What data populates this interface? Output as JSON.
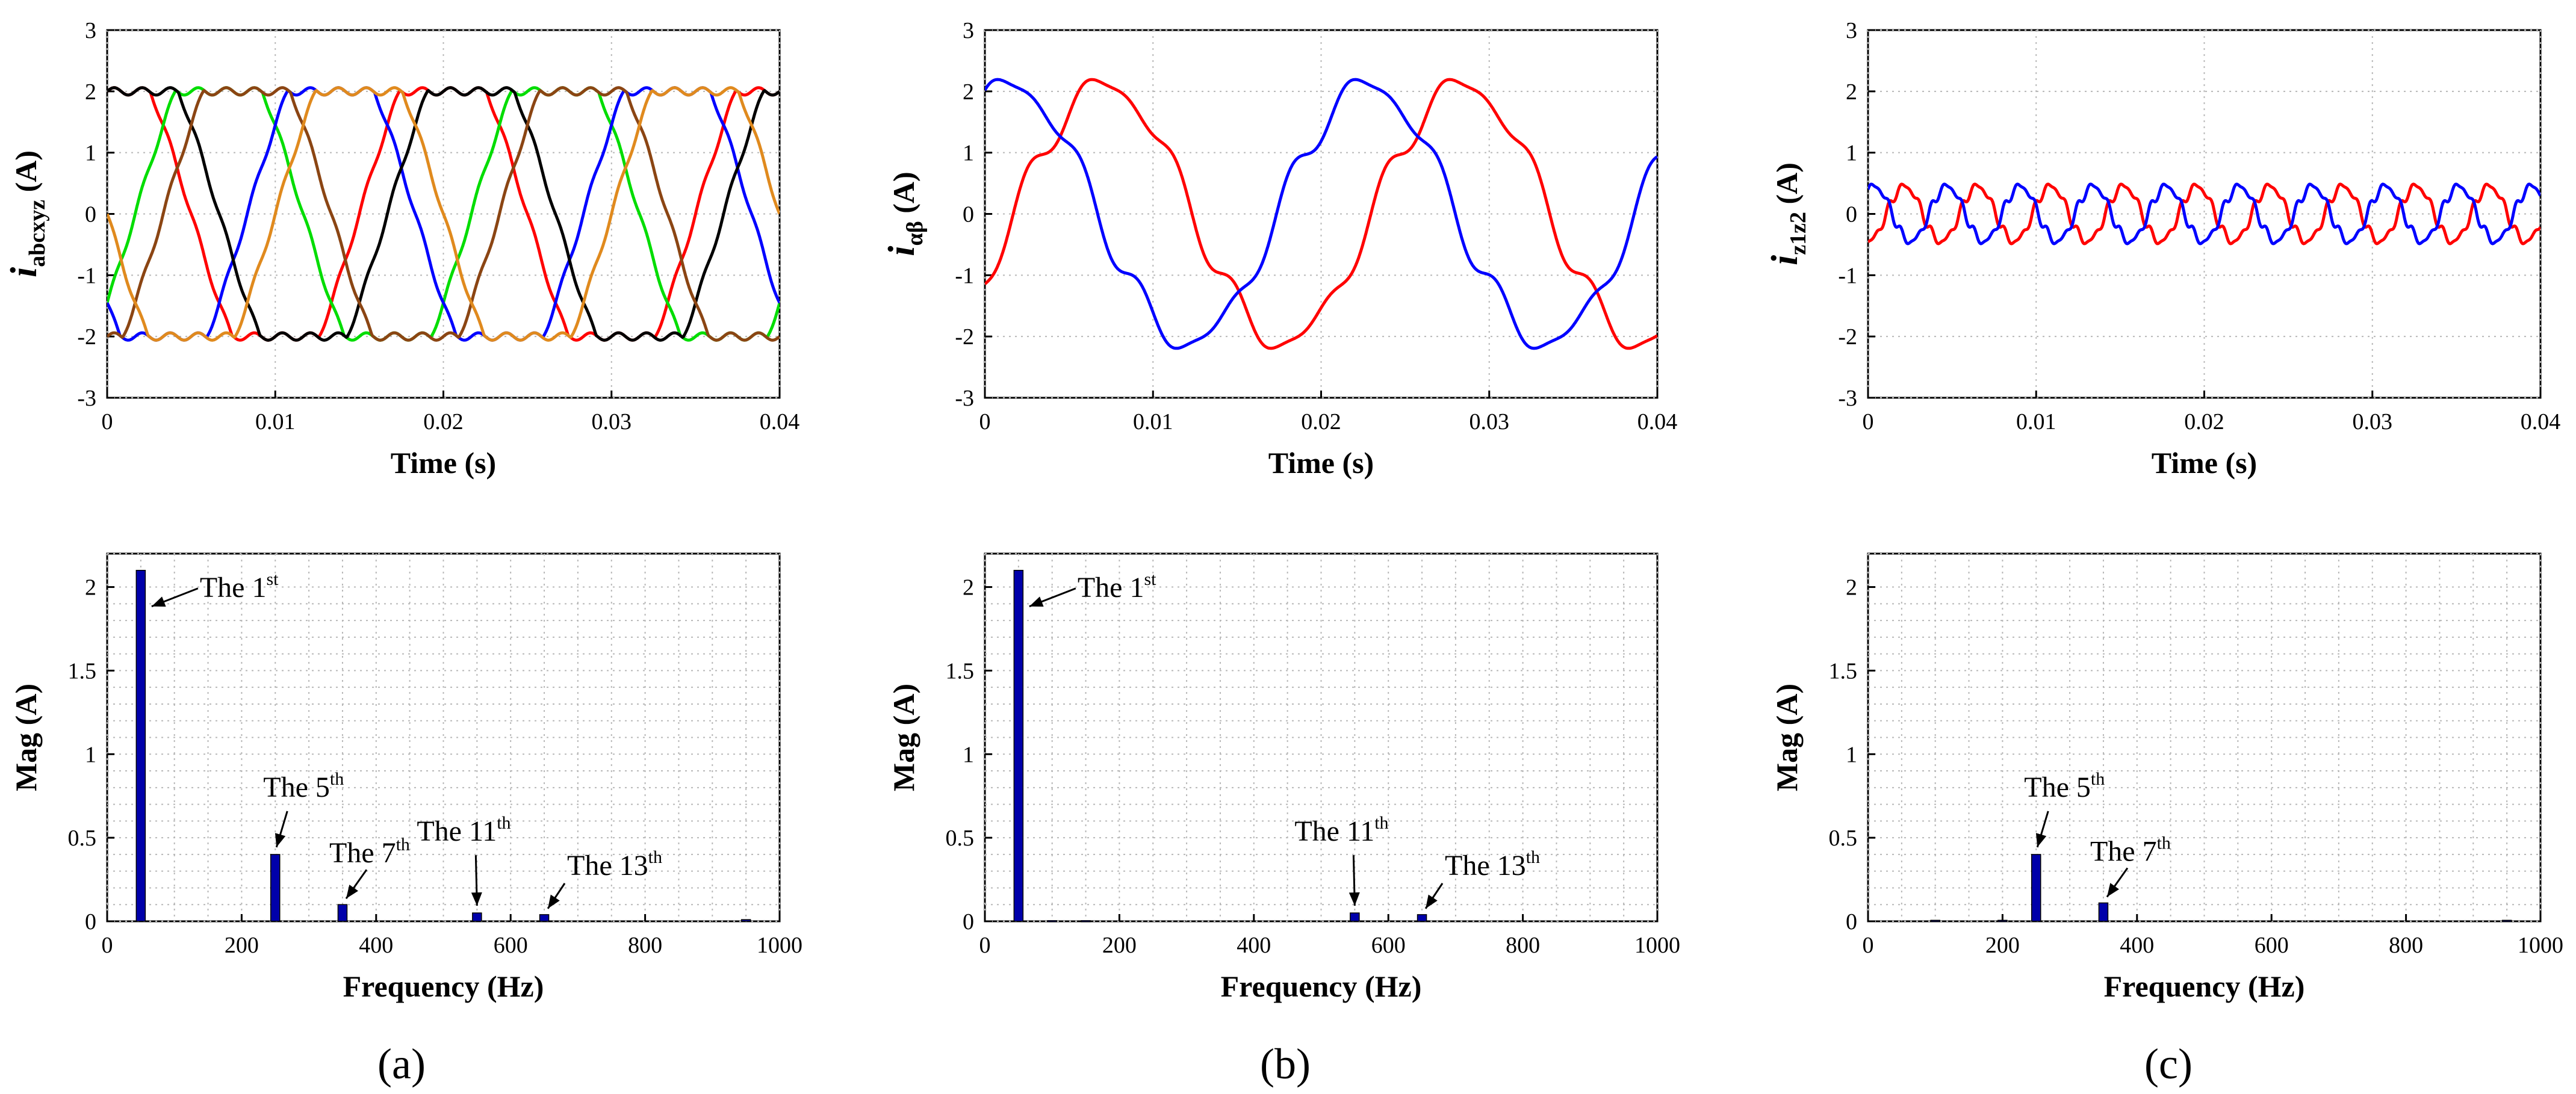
{
  "panel_labels": [
    "(a)",
    "(b)",
    "(c)"
  ],
  "colors": {
    "phase_a": "#ff0000",
    "phase_b": "#00dd00",
    "phase_c": "#0000ff",
    "phase_x": "#000000",
    "phase_y": "#8b4513",
    "phase_z": "#e08a1e",
    "alpha": "#ff0000",
    "beta": "#0000ff",
    "z1": "#ff0000",
    "z2": "#0000ff",
    "bar": "#0000aa"
  },
  "chart_data": [
    {
      "id": "a-top",
      "type": "line",
      "ylabel_main": "i",
      "ylabel_sub": "abcxyz",
      "ylabel_unit": "(A)",
      "xlabel": "Time (s)",
      "xlim": [
        0,
        0.04
      ],
      "ylim": [
        -3,
        3
      ],
      "xticks": [
        "0",
        "0.01",
        "0.02",
        "0.03",
        "0.04"
      ],
      "yticks": [
        "-3",
        "-2",
        "-1",
        "0",
        "1",
        "2",
        "3"
      ],
      "series": [
        {
          "name": "a",
          "shape": "trap",
          "amplitude": 2.0,
          "freq_hz": 50,
          "phase_deg": 90
        },
        {
          "name": "b",
          "shape": "trap",
          "amplitude": 2.0,
          "freq_hz": 50,
          "phase_deg": -30
        },
        {
          "name": "c",
          "shape": "trap",
          "amplitude": 2.0,
          "freq_hz": 50,
          "phase_deg": 210
        },
        {
          "name": "x",
          "shape": "trap",
          "amplitude": 2.0,
          "freq_hz": 50,
          "phase_deg": 60
        },
        {
          "name": "y",
          "shape": "trap",
          "amplitude": 2.0,
          "freq_hz": 50,
          "phase_deg": -60
        },
        {
          "name": "z",
          "shape": "trap",
          "amplitude": 2.0,
          "freq_hz": 50,
          "phase_deg": 180
        }
      ]
    },
    {
      "id": "b-top",
      "type": "line",
      "ylabel_main": "i",
      "ylabel_sub": "αβ",
      "ylabel_unit": "(A)",
      "xlabel": "Time (s)",
      "xlim": [
        0,
        0.04
      ],
      "ylim": [
        -3,
        3
      ],
      "xticks": [
        "0",
        "0.01",
        "0.02",
        "0.03",
        "0.04"
      ],
      "yticks": [
        "-3",
        "-2",
        "-1",
        "0",
        "1",
        "2",
        "3"
      ],
      "series": [
        {
          "name": "alpha",
          "shape": "sine",
          "amplitude": 2.1,
          "freq_hz": 47,
          "phase_deg": -30,
          "ripple": 0.08
        },
        {
          "name": "beta",
          "shape": "sine",
          "amplitude": 2.1,
          "freq_hz": 47,
          "phase_deg": 65,
          "ripple": 0.08
        }
      ]
    },
    {
      "id": "c-top",
      "type": "line",
      "ylabel_main": "i",
      "ylabel_sub": "z1z2",
      "ylabel_unit": "(A)",
      "xlabel": "Time (s)",
      "xlim": [
        0,
        0.04
      ],
      "ylim": [
        -3,
        3
      ],
      "xticks": [
        "0",
        "0.01",
        "0.02",
        "0.03",
        "0.04"
      ],
      "yticks": [
        "-3",
        "-2",
        "-1",
        "0",
        "1",
        "2",
        "3"
      ],
      "series": [
        {
          "name": "z1",
          "shape": "sine",
          "amplitude": 0.45,
          "freq_hz": 230,
          "phase_deg": -90,
          "ripple": 0.12
        },
        {
          "name": "z2",
          "shape": "sine",
          "amplitude": 0.45,
          "freq_hz": 230,
          "phase_deg": 60,
          "ripple": 0.12
        }
      ]
    },
    {
      "id": "a-bottom",
      "type": "bar",
      "ylabel": "Mag (A)",
      "xlabel": "Frequency (Hz)",
      "xlim": [
        0,
        1000
      ],
      "ylim": [
        0,
        2.2
      ],
      "xticks": [
        "0",
        "200",
        "400",
        "600",
        "800",
        "1000"
      ],
      "yticks": [
        "0",
        "0.5",
        "1",
        "1.5",
        "2"
      ],
      "x": [
        50,
        250,
        350,
        550,
        650,
        950
      ],
      "values": [
        2.1,
        0.4,
        0.1,
        0.05,
        0.04,
        0.01
      ],
      "annotations": [
        {
          "base": "The 1",
          "sup": "st",
          "x": 50,
          "y": 2.1
        },
        {
          "base": "The 5",
          "sup": "th",
          "x": 250,
          "y": 0.4
        },
        {
          "base": "The 7",
          "sup": "th",
          "x": 350,
          "y": 0.1
        },
        {
          "base": "The 11",
          "sup": "th",
          "x": 550,
          "y": 0.05
        },
        {
          "base": "The 13",
          "sup": "th",
          "x": 650,
          "y": 0.04
        }
      ]
    },
    {
      "id": "b-bottom",
      "type": "bar",
      "ylabel": "Mag (A)",
      "xlabel": "Frequency (Hz)",
      "xlim": [
        0,
        1000
      ],
      "ylim": [
        0,
        2.2
      ],
      "xticks": [
        "0",
        "200",
        "400",
        "600",
        "800",
        "1000"
      ],
      "yticks": [
        "0",
        "0.5",
        "1",
        "1.5",
        "2"
      ],
      "x": [
        50,
        100,
        150,
        550,
        650
      ],
      "values": [
        2.1,
        0.004,
        0.004,
        0.05,
        0.04
      ],
      "annotations": [
        {
          "base": "The 1",
          "sup": "st",
          "x": 50,
          "y": 2.1
        },
        {
          "base": "The 11",
          "sup": "th",
          "x": 550,
          "y": 0.05
        },
        {
          "base": "The 13",
          "sup": "th",
          "x": 650,
          "y": 0.04
        }
      ]
    },
    {
      "id": "c-bottom",
      "type": "bar",
      "ylabel": "Mag (A)",
      "xlabel": "Frequency (Hz)",
      "xlim": [
        0,
        1000
      ],
      "ylim": [
        0,
        2.2
      ],
      "xticks": [
        "0",
        "200",
        "400",
        "600",
        "800",
        "1000"
      ],
      "yticks": [
        "0",
        "0.5",
        "1",
        "1.5",
        "2"
      ],
      "x": [
        100,
        200,
        250,
        350,
        950
      ],
      "values": [
        0.006,
        0.006,
        0.4,
        0.11,
        0.006
      ],
      "annotations": [
        {
          "base": "The 5",
          "sup": "th",
          "x": 250,
          "y": 0.4
        },
        {
          "base": "The 7",
          "sup": "th",
          "x": 350,
          "y": 0.11
        }
      ]
    }
  ]
}
